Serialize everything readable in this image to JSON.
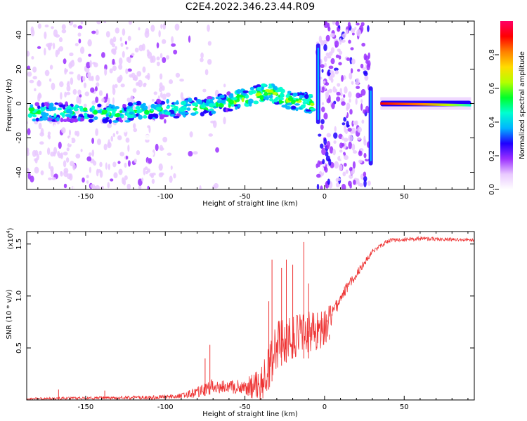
{
  "title": "C2E4.2022.346.23.44.R09",
  "chart_data": [
    {
      "type": "heatmap",
      "xlabel": "Height of straight line (km)",
      "ylabel": "Frequency (Hz)",
      "xlim": [
        -187,
        94
      ],
      "ylim": [
        -50,
        48
      ],
      "xticks": [
        -150,
        -100,
        -50,
        0,
        50
      ],
      "yticks": [
        -40,
        -20,
        0,
        20,
        40
      ],
      "colorbar": {
        "label": "Normalized spectral amplitude",
        "range": [
          0,
          1
        ],
        "ticks": [
          0.0,
          0.2,
          0.4,
          0.6,
          0.8
        ],
        "colormap": [
          "#ffffff",
          "#e9c9ff",
          "#9b30ff",
          "#1f00ff",
          "#00b4ff",
          "#00ffd0",
          "#00ff2a",
          "#b4ff00",
          "#ffdc00",
          "#ff8000",
          "#ff0000",
          "#ff0066"
        ]
      },
      "ridge": [
        {
          "x": -185,
          "y": -5
        },
        {
          "x": -170,
          "y": -5
        },
        {
          "x": -150,
          "y": -5
        },
        {
          "x": -130,
          "y": -6
        },
        {
          "x": -110,
          "y": -4
        },
        {
          "x": -90,
          "y": -3
        },
        {
          "x": -70,
          "y": -1
        },
        {
          "x": -50,
          "y": 3
        },
        {
          "x": -35,
          "y": 7
        },
        {
          "x": -25,
          "y": 3
        },
        {
          "x": -15,
          "y": 1
        },
        {
          "x": -8,
          "y": 0
        },
        {
          "x": -4,
          "y": 35
        },
        {
          "x": -4,
          "y": -12
        },
        {
          "x": 29,
          "y": 10
        },
        {
          "x": 29,
          "y": -36
        },
        {
          "x": 35,
          "y": 0
        },
        {
          "x": 60,
          "y": 0
        },
        {
          "x": 92,
          "y": -1
        }
      ]
    },
    {
      "type": "line",
      "xlabel": "Height of straight line (km)",
      "ylabel": "SNR (10 * v/v)",
      "yscale_label": "(x10",
      "yscale_exp": "4",
      "yscale_close": ")",
      "xlim": [
        -187,
        94
      ],
      "ylim": [
        0,
        1.62
      ],
      "xticks": [
        -150,
        -100,
        -50,
        0,
        50
      ],
      "yticks": [
        0.5,
        1.0,
        1.5
      ],
      "color": "#ee3333",
      "envelope": [
        {
          "x": -187,
          "y": 0.02
        },
        {
          "x": -150,
          "y": 0.03
        },
        {
          "x": -110,
          "y": 0.04
        },
        {
          "x": -90,
          "y": 0.06
        },
        {
          "x": -80,
          "y": 0.12
        },
        {
          "x": -70,
          "y": 0.2
        },
        {
          "x": -60,
          "y": 0.18
        },
        {
          "x": -50,
          "y": 0.2
        },
        {
          "x": -40,
          "y": 0.3
        },
        {
          "x": -35,
          "y": 0.5
        },
        {
          "x": -30,
          "y": 0.75
        },
        {
          "x": -20,
          "y": 0.8
        },
        {
          "x": -10,
          "y": 0.85
        },
        {
          "x": 0,
          "y": 0.85
        },
        {
          "x": 10,
          "y": 1.05
        },
        {
          "x": 20,
          "y": 1.25
        },
        {
          "x": 30,
          "y": 1.45
        },
        {
          "x": 40,
          "y": 1.55
        },
        {
          "x": 60,
          "y": 1.57
        },
        {
          "x": 80,
          "y": 1.56
        },
        {
          "x": 94,
          "y": 1.55
        }
      ],
      "noise": [
        {
          "x": -187,
          "y": 0.02
        },
        {
          "x": -120,
          "y": 0.03
        },
        {
          "x": -90,
          "y": 0.05
        },
        {
          "x": -80,
          "y": 0.1
        },
        {
          "x": -70,
          "y": 0.14
        },
        {
          "x": -60,
          "y": 0.12
        },
        {
          "x": -50,
          "y": 0.14
        },
        {
          "x": -40,
          "y": 0.35
        },
        {
          "x": -30,
          "y": 0.45
        },
        {
          "x": -20,
          "y": 0.4
        },
        {
          "x": -10,
          "y": 0.45
        },
        {
          "x": 0,
          "y": 0.35
        },
        {
          "x": 10,
          "y": 0.12
        },
        {
          "x": 20,
          "y": 0.08
        },
        {
          "x": 35,
          "y": 0.04
        },
        {
          "x": 94,
          "y": 0.03
        }
      ],
      "spikes": [
        {
          "x": -167,
          "y": 0.1
        },
        {
          "x": -138,
          "y": 0.09
        },
        {
          "x": -75,
          "y": 0.4
        },
        {
          "x": -72,
          "y": 0.53
        },
        {
          "x": -35,
          "y": 0.95
        },
        {
          "x": -33,
          "y": 1.35
        },
        {
          "x": -27,
          "y": 1.27
        },
        {
          "x": -24,
          "y": 1.35
        },
        {
          "x": -20,
          "y": 1.3
        },
        {
          "x": -13,
          "y": 1.52
        },
        {
          "x": -10,
          "y": 1.12
        },
        {
          "x": 3,
          "y": 0.58
        }
      ]
    }
  ]
}
